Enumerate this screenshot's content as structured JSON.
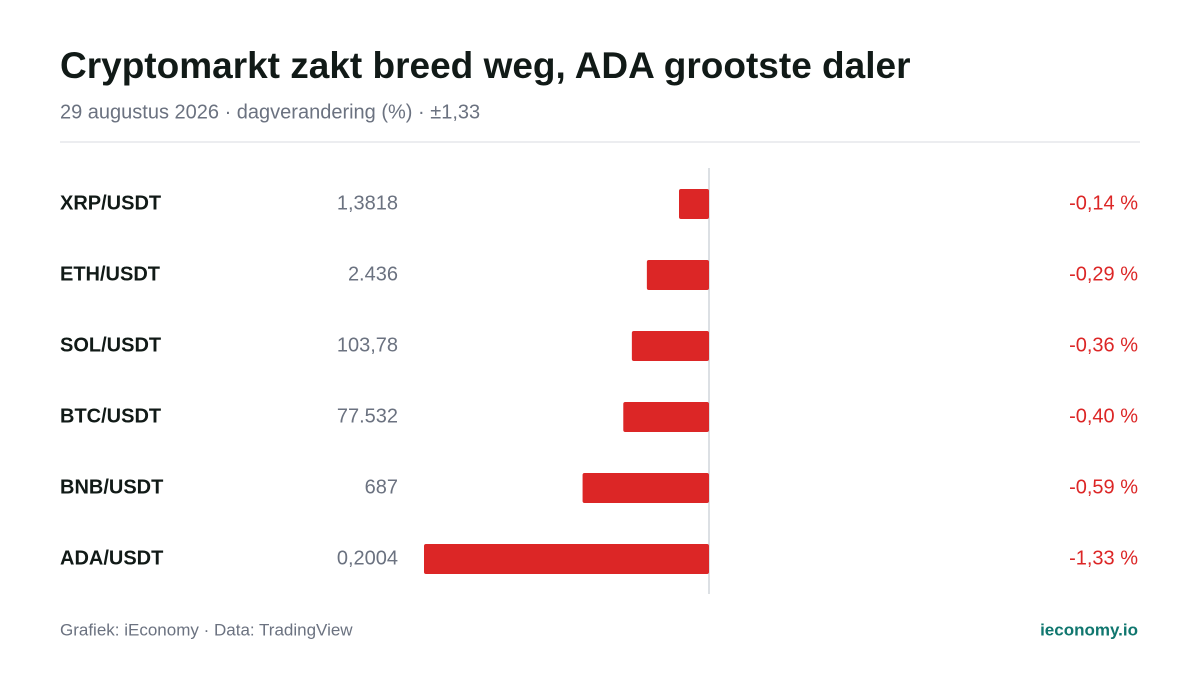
{
  "chart_data": {
    "type": "bar",
    "orientation": "horizontal",
    "title": "Cryptomarkt zakt breed weg, ADA grootste daler",
    "subtitle": "29 augustus 2026 · dagverandering (%) · ±1,33",
    "categories": [
      "XRP/USDT",
      "ETH/USDT",
      "SOL/USDT",
      "BTC/USDT",
      "BNB/USDT",
      "ADA/USDT"
    ],
    "prices": [
      "1,3818",
      "2.436",
      "103,78",
      "77.532",
      "687",
      "0,2004"
    ],
    "values": [
      -0.14,
      -0.29,
      -0.36,
      -0.4,
      -0.59,
      -1.33
    ],
    "value_labels": [
      "-0,14 %",
      "-0,29 %",
      "-0,36 %",
      "-0,40 %",
      "-0,59 %",
      "-1,33 %"
    ],
    "color": "#dc2626",
    "xlim": [
      -1.33,
      1.33
    ],
    "source": "Grafiek: iEconomy · Data: TradingView",
    "brand": "ieconomy.io"
  }
}
